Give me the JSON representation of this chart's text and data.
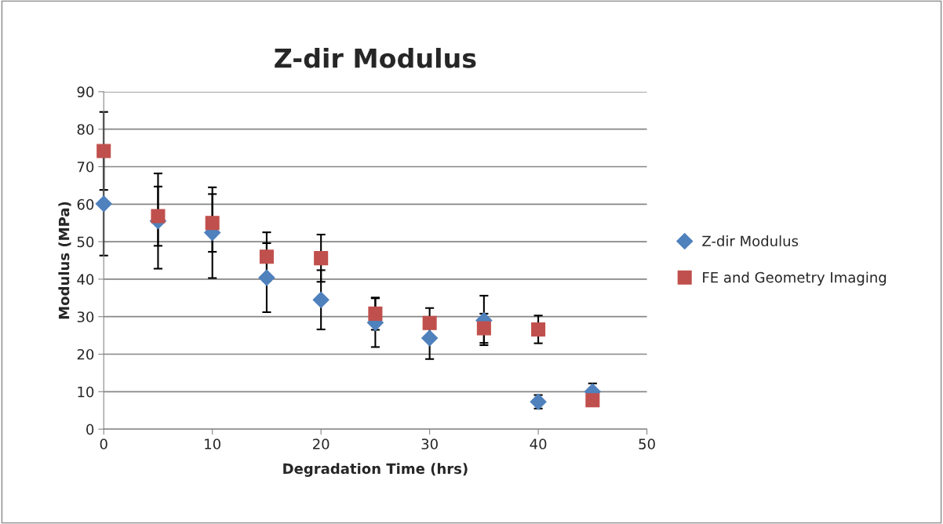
{
  "chart_data": {
    "type": "scatter",
    "title": "Z-dir Modulus",
    "xlabel": "Degradation Time (hrs)",
    "ylabel": "Modulus (MPa)",
    "x": [
      0,
      5,
      10,
      15,
      20,
      25,
      30,
      35,
      40,
      45
    ],
    "series": [
      {
        "name": "Z-dir Modulus",
        "color": "#4f81bd",
        "marker": "diamond",
        "values": [
          60.1,
          55.5,
          52.4,
          40.4,
          34.5,
          28.4,
          24.3,
          29.0,
          7.3,
          10.0
        ],
        "errors": [
          13.8,
          12.7,
          12.1,
          9.2,
          7.9,
          6.5,
          5.6,
          6.6,
          1.8,
          2.2
        ]
      },
      {
        "name": "FE and Geometry Imaging",
        "color": "#c0504d",
        "marker": "square",
        "values": [
          74.2,
          56.8,
          55.0,
          46.0,
          45.6,
          30.8,
          28.3,
          26.9,
          26.6,
          7.7
        ],
        "errors": [
          10.4,
          7.9,
          7.7,
          6.5,
          6.3,
          4.3,
          4.0,
          3.9,
          3.7,
          null
        ]
      }
    ],
    "xlim": [
      0,
      50
    ],
    "xticks": [
      0,
      10,
      20,
      30,
      40,
      50
    ],
    "ylim": [
      0,
      90
    ],
    "yticks": [
      0,
      10,
      20,
      30,
      40,
      50,
      60,
      70,
      80,
      90
    ],
    "grid": "y",
    "legend": "right"
  }
}
